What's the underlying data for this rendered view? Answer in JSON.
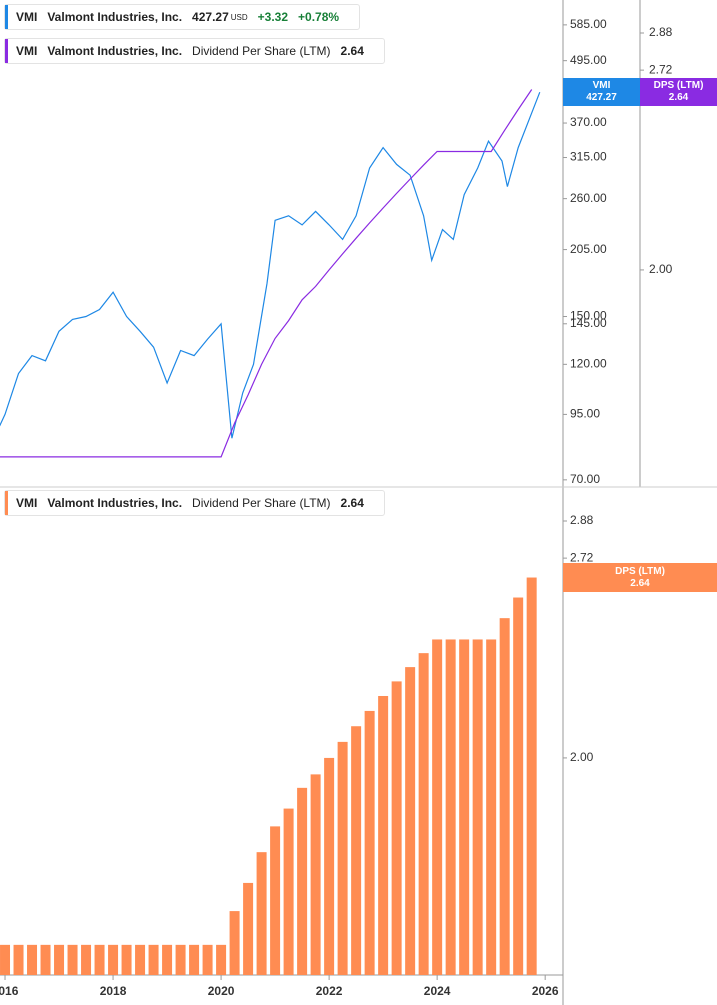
{
  "legend": [
    {
      "ticker": "VMI",
      "name": "Valmont Industries, Inc.",
      "price": "427.27",
      "currency": "USD",
      "change": "+3.32",
      "change_pct": "+0.78%"
    },
    {
      "ticker": "VMI",
      "name": "Valmont Industries, Inc.",
      "metric": "Dividend Per Share (LTM)"
    },
    {
      "ticker": "VMI",
      "name": "Valmont Industries, Inc.",
      "metric": "Dividend Per Share (LTM)"
    }
  ],
  "chart_data": [
    {
      "type": "line",
      "log_scale": true,
      "xlim": [
        2015.907,
        2026.33
      ],
      "ylim": [
        67.7,
        657
      ],
      "yticks": [
        {
          "value": 585,
          "label": "585.00"
        },
        {
          "value": 495,
          "label": "495.00"
        },
        {
          "value": 370,
          "label": "370.00"
        },
        {
          "value": 315,
          "label": "315.00"
        },
        {
          "value": 260,
          "label": "260.00"
        },
        {
          "value": 205,
          "label": "205.00"
        },
        {
          "value": 150,
          "label": "150.00"
        },
        {
          "value": 145,
          "label": "145.00"
        },
        {
          "value": 120,
          "label": "120.00"
        },
        {
          "value": 95,
          "label": "95.00"
        },
        {
          "value": 70,
          "label": "70.00"
        }
      ],
      "y2lim": [
        1.432,
        3.03
      ],
      "y2ticks": [
        2.88,
        2.72,
        {
          "value": 2,
          "label": "2.00"
        }
      ],
      "series": [
        {
          "name": "VMI",
          "color": "#1e88e5",
          "x": [
            2015.9,
            2016.0,
            2016.25,
            2016.5,
            2016.75,
            2017.0,
            2017.25,
            2017.5,
            2017.75,
            2018.0,
            2018.25,
            2018.5,
            2018.75,
            2019.0,
            2019.25,
            2019.5,
            2019.75,
            2020.0,
            2020.2,
            2020.4,
            2020.6,
            2020.85,
            2021.0,
            2021.25,
            2021.5,
            2021.75,
            2022.0,
            2022.25,
            2022.5,
            2022.75,
            2023.0,
            2023.25,
            2023.5,
            2023.75,
            2023.9,
            2024.1,
            2024.3,
            2024.5,
            2024.75,
            2024.95,
            2025.2,
            2025.3,
            2025.5,
            2025.9
          ],
          "values": [
            90,
            95,
            115,
            125,
            122,
            140,
            148,
            150,
            155,
            168,
            150,
            140,
            130,
            110,
            128,
            125,
            135,
            145,
            85,
            105,
            120,
            175,
            235,
            240,
            230,
            245,
            230,
            215,
            240,
            300,
            330,
            305,
            290,
            240,
            195,
            225,
            215,
            265,
            300,
            340,
            310,
            275,
            330,
            427.27
          ]
        },
        {
          "name": "DPS (LTM)",
          "color": "#8a2be2",
          "axis": "y2",
          "x": [
            2015.9,
            2016.25,
            2016.5,
            2016.75,
            2017.0,
            2017.25,
            2017.5,
            2017.75,
            2018.0,
            2018.25,
            2018.5,
            2018.75,
            2019.0,
            2019.25,
            2019.5,
            2019.75,
            2020.0,
            2020.25,
            2020.5,
            2020.75,
            2021.0,
            2021.25,
            2021.5,
            2021.75,
            2022.0,
            2022.25,
            2022.5,
            2022.75,
            2023.0,
            2023.25,
            2023.5,
            2023.75,
            2024.0,
            2024.25,
            2024.5,
            2024.75,
            2025.0,
            2025.25,
            2025.5,
            2025.75
          ],
          "values": [
            1.5,
            1.5,
            1.5,
            1.5,
            1.5,
            1.5,
            1.5,
            1.5,
            1.5,
            1.5,
            1.5,
            1.5,
            1.5,
            1.5,
            1.5,
            1.5,
            1.5,
            1.58,
            1.65,
            1.73,
            1.8,
            1.85,
            1.91,
            1.95,
            2.0,
            2.05,
            2.1,
            2.15,
            2.2,
            2.25,
            2.3,
            2.35,
            2.4,
            2.4,
            2.4,
            2.4,
            2.4,
            2.48,
            2.56,
            2.64
          ]
        }
      ]
    },
    {
      "type": "bar",
      "log_scale": true,
      "series_name": "DPS (LTM)",
      "color": "#ff8c52",
      "xlim": [
        2015.907,
        2026.33
      ],
      "xticks": [
        2016,
        2018,
        2020,
        2022,
        2024,
        2026
      ],
      "ylim": [
        1.432,
        3.03
      ],
      "yticks": [
        2.88,
        2.72,
        {
          "value": 2,
          "label": "2.00"
        }
      ],
      "x": [
        2016.0,
        2016.25,
        2016.5,
        2016.75,
        2017.0,
        2017.25,
        2017.5,
        2017.75,
        2018.0,
        2018.25,
        2018.5,
        2018.75,
        2019.0,
        2019.25,
        2019.5,
        2019.75,
        2020.0,
        2020.25,
        2020.5,
        2020.75,
        2021.0,
        2021.25,
        2021.5,
        2021.75,
        2022.0,
        2022.25,
        2022.5,
        2022.75,
        2023.0,
        2023.25,
        2023.5,
        2023.75,
        2024.0,
        2024.25,
        2024.5,
        2024.75,
        2025.0,
        2025.25,
        2025.5,
        2025.75
      ],
      "values": [
        1.5,
        1.5,
        1.5,
        1.5,
        1.5,
        1.5,
        1.5,
        1.5,
        1.5,
        1.5,
        1.5,
        1.5,
        1.5,
        1.5,
        1.5,
        1.5,
        1.5,
        1.58,
        1.65,
        1.73,
        1.8,
        1.85,
        1.91,
        1.95,
        2.0,
        2.05,
        2.1,
        2.15,
        2.2,
        2.25,
        2.3,
        2.35,
        2.4,
        2.4,
        2.4,
        2.4,
        2.4,
        2.48,
        2.56,
        2.64
      ]
    }
  ]
}
